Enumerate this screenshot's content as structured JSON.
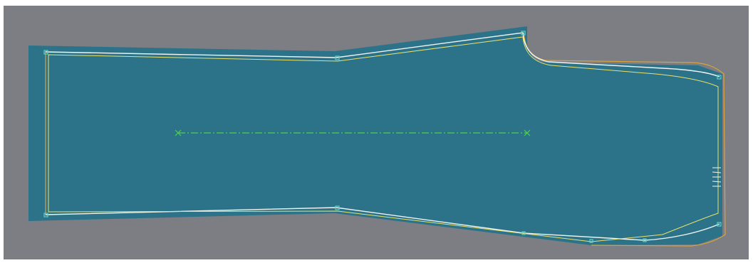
{
  "view": {
    "background_color": "#7d7e83",
    "frame_color": "#ffffff"
  },
  "pattern_piece": {
    "shape": "trouser-leg",
    "fill_color": "#2c7389",
    "seam_line_color": "#e9e26a",
    "cut_line_color": "#f0f4f4",
    "outline_color": "#d7a43f",
    "point_marker_color": "#5fd0c4",
    "notch_count": 5
  },
  "grain_line": {
    "color": "#4cd04c",
    "style": "dash-dot",
    "end_marker": "x"
  }
}
